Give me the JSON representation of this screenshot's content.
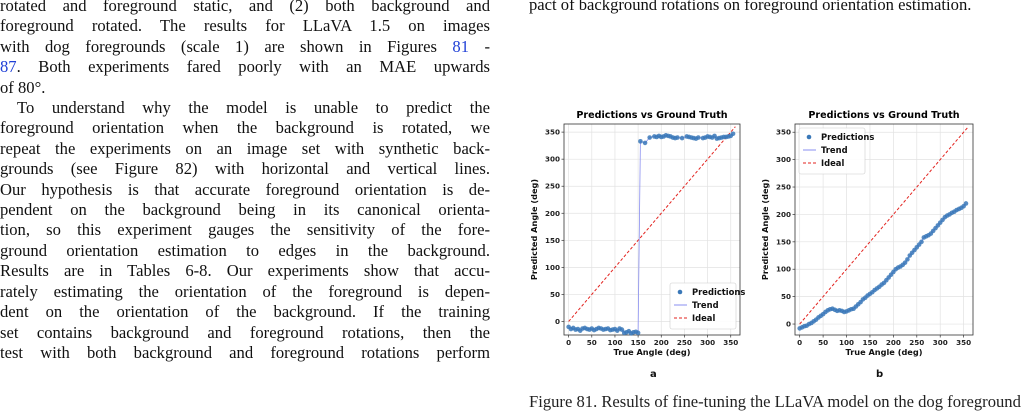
{
  "left_column": {
    "p1_lines": [
      "rotated and foreground static, and (2) both background and",
      "foreground rotated. The results for LLaVA 1.5 on images",
      "with dog foregrounds (scale 1) are shown in Figures ",
      "87. Both experiments fared poorly with an MAE upwards",
      "of 80°."
    ],
    "p1_ref_a": "81",
    "p1_ref_sep": " -",
    "p1_ref_b": "87",
    "p2_lines": [
      "To understand why the model is unable to predict the",
      "foreground orientation when the background is rotated, we",
      "repeat the experiments on an image set with synthetic back-",
      "grounds (see Figure 82) with horizontal and vertical lines.",
      "Our hypothesis is that accurate foreground orientation is de-",
      "pendent on the background being in its canonical orienta-",
      "tion, so this experiment gauges the sensitivity of the fore-",
      "ground orientation estimation to edges in the background.",
      "Results are in Tables 6-8. Our experiments show that accu-",
      "rately estimating the orientation of the foreground is depen-",
      "dent on the orientation of the background. If the training",
      "set contains background and foreground rotations, then the",
      "test with both background and foreground rotations perform"
    ]
  },
  "right_column": {
    "top_line": "pact of background rotations on foreground orientation estimation.",
    "caption_cut": "Figure 81. Results of fine-tuning the LLaVA model on the dog foreground"
  },
  "chart_data": [
    {
      "type": "scatter",
      "panel": "a",
      "title": "Predictions vs Ground Truth",
      "xlabel": "True Angle (deg)",
      "ylabel": "Predicted Angle (deg)",
      "xlim": [
        -10,
        370
      ],
      "ylim": [
        -25,
        365
      ],
      "xticks": [
        0,
        50,
        100,
        150,
        200,
        250,
        300,
        350
      ],
      "yticks": [
        0,
        50,
        100,
        150,
        200,
        250,
        300,
        350
      ],
      "grid": true,
      "legend_position": "bottom-right",
      "legend": [
        "Predictions",
        "Trend",
        "Ideal"
      ],
      "series": [
        {
          "name": "Predictions",
          "color": "#3a78b8",
          "x": [
            0,
            5,
            10,
            15,
            20,
            25,
            30,
            35,
            40,
            45,
            50,
            55,
            60,
            65,
            70,
            75,
            80,
            85,
            90,
            95,
            100,
            105,
            110,
            115,
            120,
            125,
            130,
            135,
            140,
            145,
            150,
            155,
            165,
            175,
            185,
            190,
            195,
            200,
            205,
            210,
            215,
            220,
            225,
            230,
            235,
            245,
            255,
            260,
            265,
            270,
            275,
            280,
            290,
            295,
            300,
            305,
            310,
            315,
            320,
            325,
            330,
            335,
            340,
            345,
            350,
            355
          ],
          "y": [
            -10,
            -14,
            -12,
            -15,
            -14,
            -17,
            -13,
            -12,
            -14,
            -15,
            -13,
            -16,
            -14,
            -12,
            -13,
            -15,
            -14,
            -13,
            -16,
            -15,
            -14,
            -17,
            -13,
            -15,
            -21,
            -20,
            -18,
            -22,
            -20,
            -19,
            -21,
            333,
            330,
            340,
            342,
            341,
            343,
            341,
            342,
            344,
            343,
            342,
            340,
            339,
            340,
            339,
            342,
            341,
            340,
            339,
            338,
            340,
            339,
            340,
            342,
            341,
            340,
            343,
            338,
            339,
            340,
            341,
            341,
            342,
            343,
            347
          ]
        },
        {
          "name": "Trend",
          "color": "#8a8ff0",
          "style": "solid line through predictions"
        },
        {
          "name": "Ideal",
          "color": "#e3231f",
          "style": "dashed",
          "x": [
            0,
            360
          ],
          "y": [
            0,
            360
          ]
        }
      ]
    },
    {
      "type": "scatter",
      "panel": "b",
      "title": "Predictions vs Ground Truth",
      "xlabel": "True Angle (deg)",
      "ylabel": "Predicted Angle (deg)",
      "xlim": [
        -10,
        370
      ],
      "ylim": [
        -20,
        365
      ],
      "xticks": [
        0,
        50,
        100,
        150,
        200,
        250,
        300,
        350
      ],
      "yticks": [
        0,
        50,
        100,
        150,
        200,
        250,
        300,
        350
      ],
      "grid": true,
      "legend_position": "top-left",
      "legend": [
        "Predictions",
        "Trend",
        "Ideal"
      ],
      "series": [
        {
          "name": "Predictions",
          "color": "#3a78b8",
          "x": [
            0,
            5,
            10,
            15,
            20,
            25,
            30,
            35,
            40,
            45,
            50,
            55,
            60,
            65,
            70,
            75,
            80,
            85,
            90,
            95,
            100,
            105,
            110,
            115,
            120,
            125,
            130,
            135,
            140,
            145,
            150,
            155,
            160,
            165,
            170,
            175,
            180,
            185,
            190,
            195,
            200,
            205,
            210,
            215,
            220,
            225,
            230,
            235,
            240,
            245,
            250,
            255,
            260,
            265,
            270,
            275,
            280,
            285,
            290,
            295,
            300,
            305,
            310,
            315,
            320,
            325,
            330,
            335,
            340,
            345,
            350,
            355
          ],
          "y": [
            -8,
            -6,
            -4,
            -3,
            0,
            2,
            5,
            8,
            12,
            15,
            18,
            22,
            25,
            27,
            28,
            26,
            24,
            25,
            24,
            22,
            23,
            25,
            27,
            28,
            32,
            36,
            40,
            45,
            48,
            52,
            55,
            58,
            62,
            65,
            68,
            72,
            75,
            80,
            85,
            90,
            95,
            100,
            103,
            105,
            108,
            112,
            118,
            125,
            130,
            135,
            140,
            145,
            150,
            158,
            160,
            162,
            165,
            170,
            175,
            180,
            185,
            190,
            195,
            198,
            200,
            203,
            205,
            208,
            210,
            212,
            215,
            220
          ]
        },
        {
          "name": "Trend",
          "color": "#8a8ff0",
          "style": "solid line through predictions"
        },
        {
          "name": "Ideal",
          "color": "#e3231f",
          "style": "dashed",
          "x": [
            0,
            360
          ],
          "y": [
            0,
            360
          ]
        }
      ]
    }
  ]
}
